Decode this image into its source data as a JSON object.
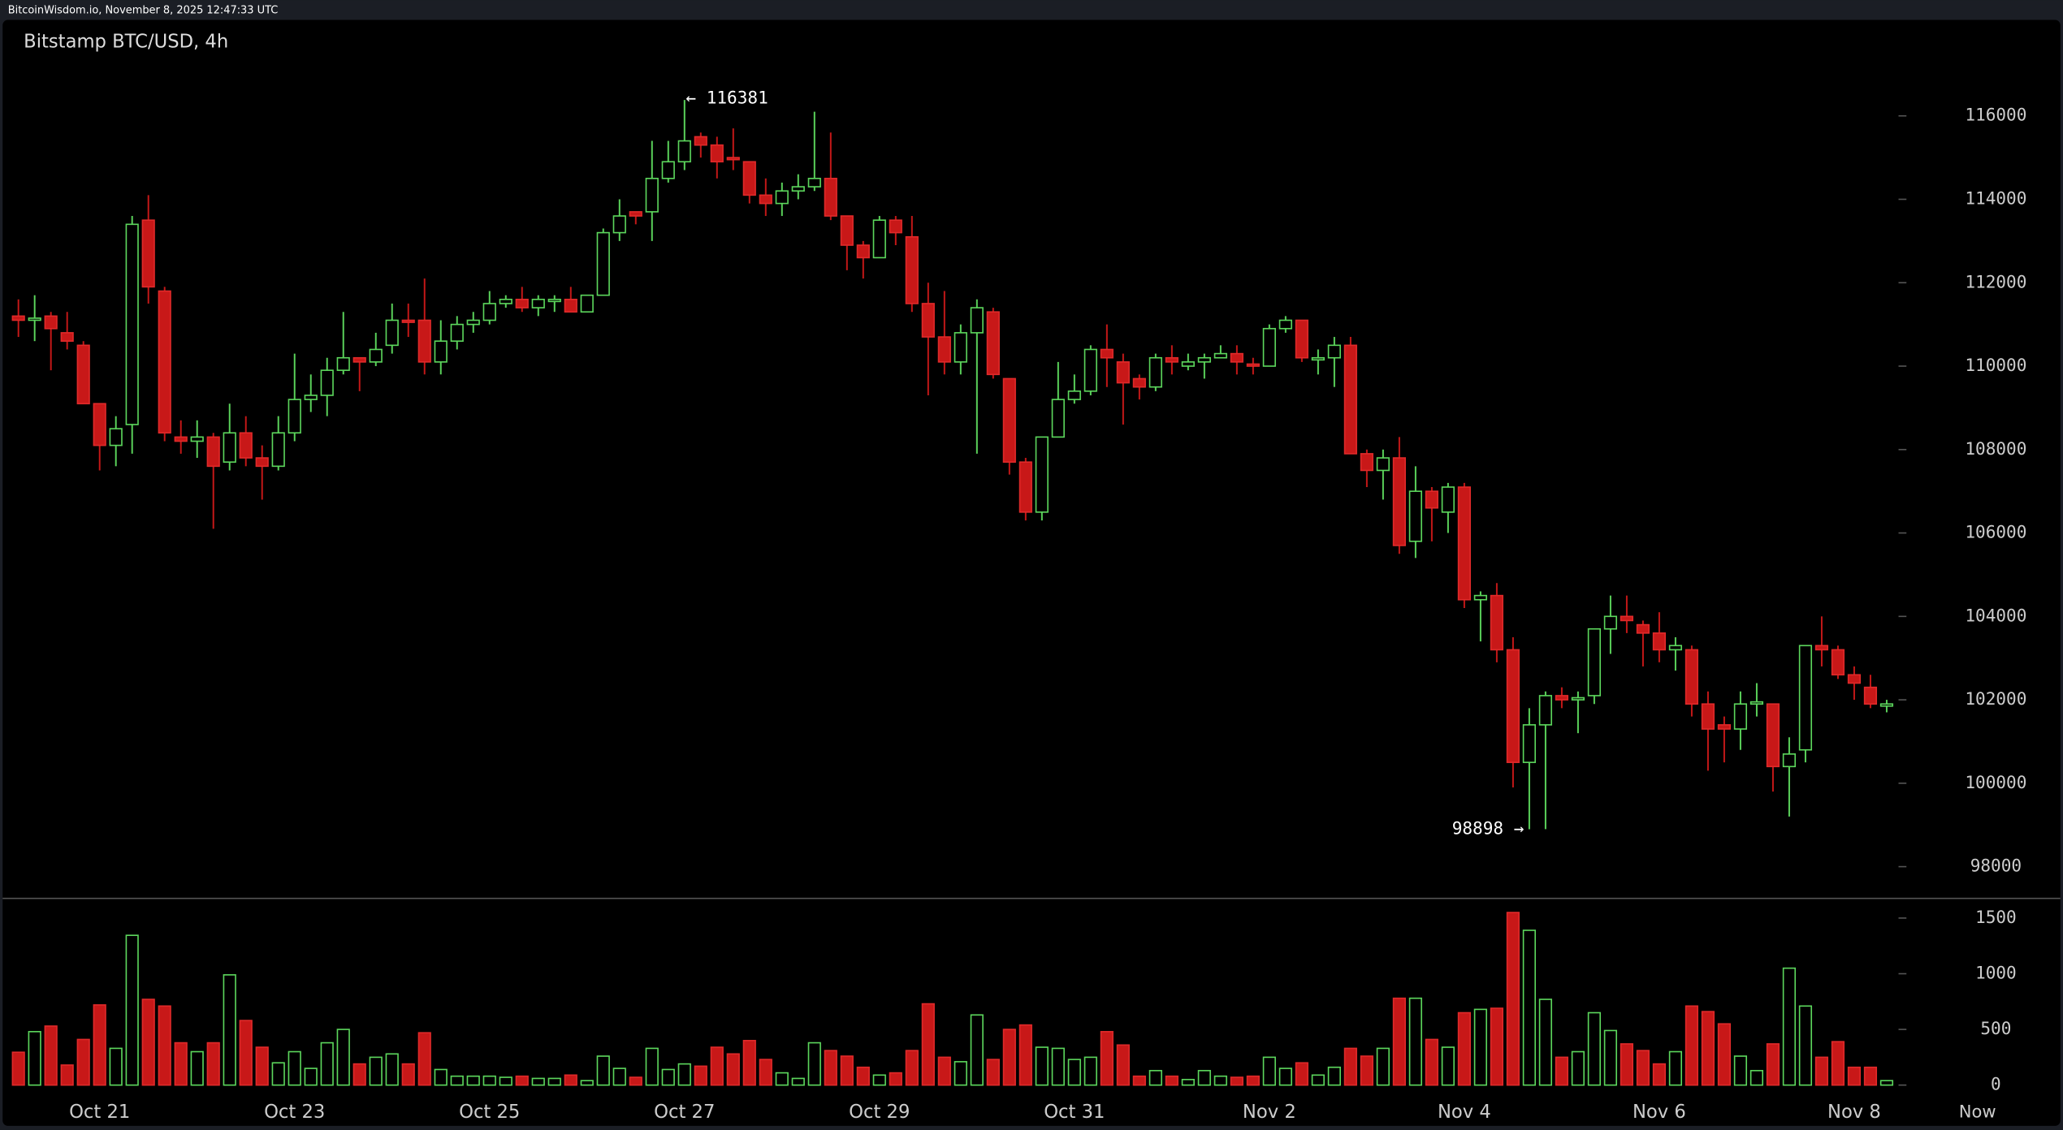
{
  "header": "BitcoinWisdom.io, November 8, 2025 12:47:33 UTC",
  "chart_data": {
    "type": "candlestick",
    "title": "Bitstamp BTC/USD, 4h",
    "categories": [
      null,
      null,
      null,
      null,
      null,
      "Oct 21",
      null,
      null,
      null,
      null,
      null,
      null,
      null,
      null,
      null,
      null,
      null,
      "Oct 23",
      null,
      null,
      null,
      null,
      null,
      null,
      null,
      null,
      null,
      null,
      null,
      "Oct 25",
      null,
      null,
      null,
      null,
      null,
      null,
      null,
      null,
      null,
      null,
      null,
      "Oct 27",
      null,
      null,
      null,
      null,
      null,
      null,
      null,
      null,
      null,
      null,
      null,
      "Oct 29",
      null,
      null,
      null,
      null,
      null,
      null,
      null,
      null,
      null,
      null,
      null,
      "Oct 31",
      null,
      null,
      null,
      null,
      null,
      null,
      null,
      null,
      null,
      null,
      null,
      "Nov 2",
      null,
      null,
      null,
      null,
      null,
      null,
      null,
      null,
      null,
      null,
      null,
      "Nov 4",
      null,
      null,
      null,
      null,
      null,
      null,
      null,
      null,
      null,
      null,
      null,
      "Nov 6",
      null,
      null,
      null,
      null,
      null,
      null,
      null,
      null,
      null,
      null,
      null,
      "Nov 8",
      null,
      null
    ],
    "now_label": "Now",
    "open": [
      111200,
      111100,
      111200,
      110800,
      110500,
      109100,
      108100,
      108600,
      113500,
      111800,
      108300,
      108200,
      108300,
      107700,
      108400,
      107800,
      107600,
      108400,
      109200,
      109300,
      109900,
      110200,
      110100,
      110500,
      111100,
      111100,
      110100,
      110600,
      111000,
      111100,
      111500,
      111600,
      111400,
      111550,
      111600,
      111300,
      111700,
      113200,
      113700,
      113700,
      114500,
      114900,
      115500,
      115300,
      115000,
      114900,
      114100,
      113900,
      114200,
      114300,
      114500,
      113600,
      112900,
      112600,
      113500,
      113100,
      111500,
      110700,
      110100,
      110800,
      111300,
      109700,
      107700,
      106500,
      108300,
      109200,
      109400,
      110400,
      110100,
      109700,
      109500,
      110200,
      110000,
      110100,
      110200,
      110300,
      110050,
      110000,
      110900,
      111100,
      110150,
      110200,
      110500,
      107900,
      107500,
      107800,
      105800,
      107000,
      106500,
      107100,
      104400,
      104500,
      103200,
      100500,
      101400,
      102100,
      102000,
      102100,
      103700,
      104000,
      103800,
      103600,
      103200,
      103200,
      101900,
      101400,
      101300,
      101900,
      101900,
      100400,
      100800,
      103300,
      103200,
      102600,
      102300,
      101850
    ],
    "high": [
      111600,
      111700,
      111300,
      111300,
      110600,
      109100,
      108800,
      113600,
      114100,
      111900,
      108700,
      108700,
      108400,
      109100,
      108800,
      108100,
      108800,
      110300,
      109800,
      110200,
      111300,
      110200,
      110800,
      111500,
      111500,
      112100,
      111100,
      111200,
      111300,
      111800,
      111700,
      111900,
      111700,
      111700,
      111900,
      111700,
      113300,
      114000,
      113700,
      115400,
      115400,
      116381,
      115600,
      115500,
      115700,
      114900,
      114500,
      114400,
      114600,
      116100,
      115600,
      113600,
      113000,
      113600,
      113600,
      113600,
      112000,
      111800,
      111000,
      111600,
      111400,
      109700,
      107800,
      108300,
      110100,
      109800,
      110500,
      111000,
      110300,
      109800,
      110300,
      110500,
      110300,
      110300,
      110500,
      110500,
      110200,
      111000,
      111200,
      111100,
      110400,
      110700,
      110700,
      108000,
      108000,
      108300,
      107600,
      107100,
      107200,
      107200,
      104600,
      104800,
      103500,
      101800,
      102200,
      102300,
      102200,
      103700,
      104500,
      104500,
      103900,
      104100,
      103500,
      103300,
      102200,
      101600,
      102200,
      102400,
      101900,
      101100,
      103300,
      104000,
      103300,
      102800,
      102600,
      102000
    ],
    "low": [
      110700,
      110600,
      109900,
      110400,
      109100,
      107500,
      107600,
      107900,
      111500,
      108200,
      107900,
      107800,
      106100,
      107500,
      107600,
      106800,
      107500,
      108200,
      108900,
      108800,
      109800,
      109400,
      110000,
      110300,
      110700,
      109800,
      109800,
      110400,
      110800,
      111000,
      111400,
      111300,
      111200,
      111300,
      111300,
      111300,
      111700,
      113000,
      113400,
      113000,
      114400,
      114700,
      115000,
      114500,
      114700,
      113900,
      113600,
      113600,
      114000,
      114200,
      113500,
      112300,
      112100,
      112600,
      112900,
      111300,
      109300,
      109800,
      109800,
      107900,
      109700,
      107400,
      106300,
      106300,
      108300,
      109100,
      109300,
      109500,
      108600,
      109200,
      109400,
      109800,
      109900,
      109700,
      110200,
      109800,
      109800,
      110000,
      110800,
      110100,
      109800,
      109500,
      107900,
      107100,
      106800,
      105500,
      105400,
      105800,
      106000,
      104200,
      103400,
      102900,
      99900,
      98898,
      98900,
      101800,
      101200,
      101900,
      103100,
      103600,
      102800,
      102900,
      102700,
      101600,
      100300,
      100500,
      100800,
      101600,
      99800,
      99200,
      100500,
      102800,
      102500,
      102000,
      101800,
      101700
    ],
    "close": [
      111100,
      111150,
      110900,
      110600,
      109100,
      108100,
      108500,
      113400,
      111900,
      108400,
      108200,
      108300,
      107600,
      108400,
      107800,
      107600,
      108400,
      109200,
      109300,
      109900,
      110200,
      110100,
      110400,
      111100,
      111050,
      110100,
      110600,
      111000,
      111100,
      111500,
      111600,
      111400,
      111600,
      111600,
      111300,
      111700,
      113200,
      113600,
      113600,
      114500,
      114900,
      115400,
      115300,
      114900,
      114950,
      114100,
      113900,
      114200,
      114300,
      114500,
      113600,
      112900,
      112600,
      113500,
      113200,
      111500,
      110700,
      110100,
      110800,
      111400,
      109800,
      107700,
      106500,
      108300,
      109200,
      109400,
      110400,
      110200,
      109600,
      109500,
      110200,
      110100,
      110100,
      110200,
      110300,
      110100,
      110000,
      110900,
      111100,
      110200,
      110200,
      110500,
      107900,
      107500,
      107800,
      105700,
      107000,
      106600,
      107100,
      104400,
      104500,
      103200,
      100500,
      101400,
      102100,
      102000,
      102050,
      103700,
      104000,
      103900,
      103600,
      103200,
      103300,
      101900,
      101300,
      101300,
      101900,
      101950,
      100400,
      100700,
      103300,
      103200,
      102600,
      102400,
      101900,
      101900
    ],
    "volume": [
      295,
      480,
      530,
      180,
      410,
      720,
      330,
      1345,
      770,
      710,
      380,
      300,
      380,
      990,
      580,
      340,
      200,
      300,
      150,
      380,
      500,
      190,
      250,
      280,
      190,
      470,
      140,
      80,
      80,
      80,
      70,
      80,
      60,
      60,
      90,
      40,
      260,
      150,
      70,
      330,
      140,
      190,
      170,
      340,
      280,
      400,
      230,
      110,
      60,
      380,
      310,
      260,
      160,
      90,
      110,
      310,
      730,
      250,
      210,
      630,
      230,
      500,
      540,
      340,
      330,
      230,
      250,
      480,
      360,
      80,
      130,
      80,
      50,
      130,
      80,
      70,
      80,
      250,
      150,
      200,
      90,
      160,
      330,
      260,
      330,
      780,
      780,
      410,
      340,
      650,
      680,
      690,
      1550,
      1390,
      770,
      250,
      300,
      650,
      490,
      370,
      310,
      190,
      300,
      710,
      660,
      550,
      260,
      130,
      370,
      1050,
      710,
      250,
      390,
      160,
      160,
      40
    ],
    "up_color": "#5cd65c",
    "down_color": "#c81818",
    "ylim": [
      97240,
      118300
    ],
    "yticks": [
      98000,
      100000,
      102000,
      104000,
      106000,
      108000,
      110000,
      112000,
      114000,
      116000
    ],
    "volume_ylim": [
      -59,
      1677
    ],
    "volume_ticks": [
      0,
      500,
      1000,
      1500
    ],
    "annotations": [
      {
        "text": "← 116381",
        "value": 116381
      },
      {
        "text": "98898 →",
        "value": 98898
      }
    ]
  }
}
